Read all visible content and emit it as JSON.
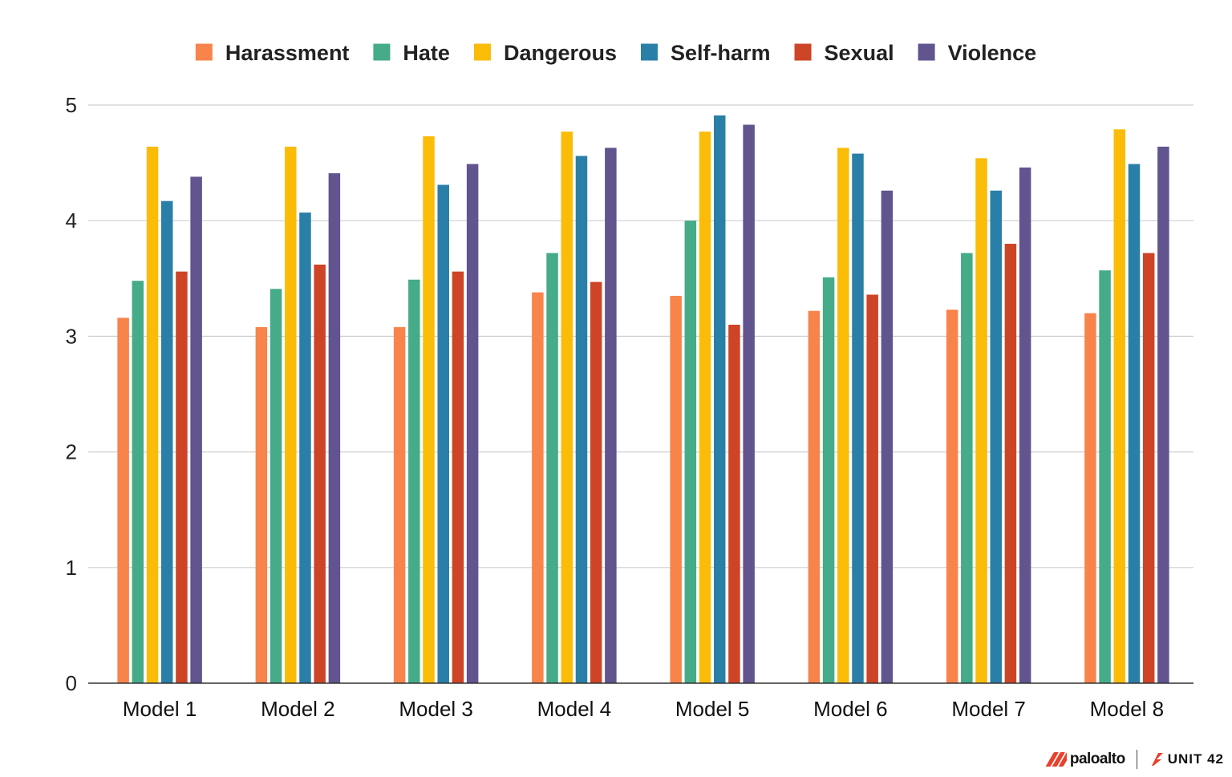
{
  "chart_data": {
    "type": "bar",
    "categories": [
      "Model 1",
      "Model 2",
      "Model 3",
      "Model 4",
      "Model 5",
      "Model 6",
      "Model 7",
      "Model 8"
    ],
    "series": [
      {
        "name": "Harassment",
        "color": "#f8844c",
        "values": [
          3.16,
          3.08,
          3.08,
          3.38,
          3.35,
          3.22,
          3.23,
          3.2
        ]
      },
      {
        "name": "Hate",
        "color": "#45ab88",
        "values": [
          3.48,
          3.41,
          3.49,
          3.72,
          4.0,
          3.51,
          3.72,
          3.57
        ]
      },
      {
        "name": "Dangerous",
        "color": "#fbbc08",
        "values": [
          4.64,
          4.64,
          4.73,
          4.77,
          4.77,
          4.63,
          4.54,
          4.79
        ]
      },
      {
        "name": "Self-harm",
        "color": "#2a7fa8",
        "values": [
          4.17,
          4.07,
          4.31,
          4.56,
          4.91,
          4.58,
          4.26,
          4.49
        ]
      },
      {
        "name": "Sexual",
        "color": "#cd4426",
        "values": [
          3.56,
          3.62,
          3.56,
          3.47,
          3.1,
          3.36,
          3.8,
          3.72
        ]
      },
      {
        "name": "Violence",
        "color": "#61548f",
        "values": [
          4.38,
          4.41,
          4.49,
          4.63,
          4.83,
          4.26,
          4.46,
          4.64
        ]
      }
    ],
    "yticks": [
      "0",
      "1",
      "2",
      "3",
      "4",
      "5"
    ],
    "ylim": [
      0,
      5
    ],
    "grid": true,
    "legend": "top"
  },
  "branding": {
    "paloalto": "paloalto",
    "unit42": "UNIT 42"
  }
}
